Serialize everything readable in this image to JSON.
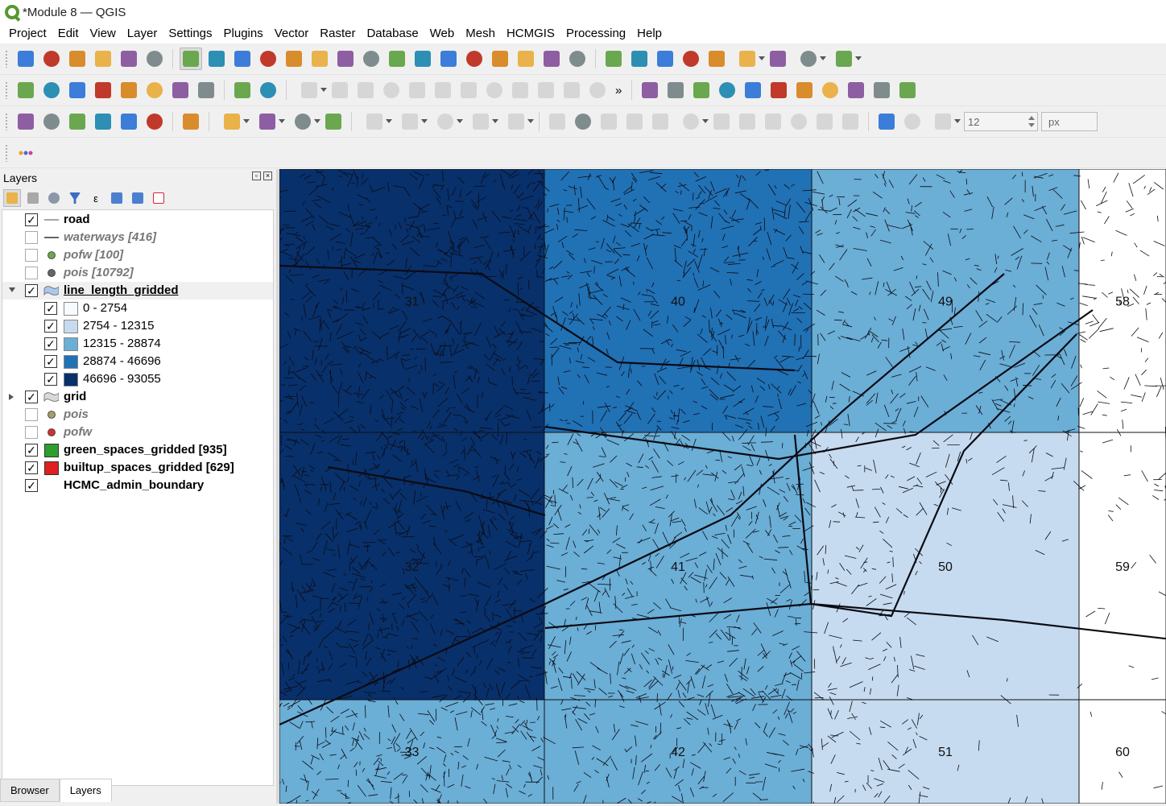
{
  "window": {
    "title": "*Module 8 — QGIS"
  },
  "menu": [
    "Project",
    "Edit",
    "View",
    "Layer",
    "Settings",
    "Plugins",
    "Vector",
    "Raster",
    "Database",
    "Web",
    "Mesh",
    "HCMGIS",
    "Processing",
    "Help"
  ],
  "toolbar3": {
    "size_value": "12",
    "unit_value": "px",
    "overflow_glyph": "»"
  },
  "panel": {
    "title": "Layers",
    "bottom_tabs": [
      "Browser",
      "Layers"
    ]
  },
  "layers": [
    {
      "name": "road",
      "checked": true,
      "style": "bold",
      "symbol": "line"
    },
    {
      "name": "waterways [416]",
      "checked": false,
      "style": "off",
      "symbol": "line"
    },
    {
      "name": "pofw [100]",
      "checked": false,
      "style": "off",
      "symbol": "point-green"
    },
    {
      "name": "pois [10792]",
      "checked": false,
      "style": "off",
      "symbol": "point-gray"
    },
    {
      "name": "line_length_gridded",
      "checked": true,
      "style": "bold-ul",
      "symbol": "polygon-blue",
      "expanded": true
    },
    {
      "name": "0 - 2754",
      "checked": true,
      "style": "class",
      "color": "#f7fbff"
    },
    {
      "name": "2754 - 12315",
      "checked": true,
      "style": "class",
      "color": "#c6dbef"
    },
    {
      "name": "12315 - 28874",
      "checked": true,
      "style": "class",
      "color": "#6baed6"
    },
    {
      "name": "28874 - 46696",
      "checked": true,
      "style": "class",
      "color": "#2171b5"
    },
    {
      "name": "46696 - 93055",
      "checked": true,
      "style": "class",
      "color": "#08306b"
    },
    {
      "name": "grid",
      "checked": true,
      "style": "bold",
      "symbol": "polygon-gray",
      "collapsed": true
    },
    {
      "name": "pois",
      "checked": false,
      "style": "off",
      "symbol": "point-olive"
    },
    {
      "name": "pofw",
      "checked": false,
      "style": "off",
      "symbol": "point-red"
    },
    {
      "name": "green_spaces_gridded [935]",
      "checked": true,
      "style": "bold",
      "symbol": "fill-green"
    },
    {
      "name": "builtup_spaces_gridded [629]",
      "checked": true,
      "style": "bold",
      "symbol": "fill-red"
    },
    {
      "name": "HCMC_admin_boundary",
      "checked": true,
      "style": "bold",
      "symbol": "none"
    }
  ],
  "map": {
    "cells": [
      {
        "label": "31",
        "color": "#08306b"
      },
      {
        "label": "40",
        "color": "#2171b5"
      },
      {
        "label": "49",
        "color": "#6baed6"
      },
      {
        "label": "58",
        "color": "#ffffff"
      },
      {
        "label": "32",
        "color": "#08306b"
      },
      {
        "label": "41",
        "color": "#6baed6"
      },
      {
        "label": "50",
        "color": "#c6dbef"
      },
      {
        "label": "59",
        "color": "#ffffff"
      },
      {
        "label": "33",
        "color": "#6baed6"
      },
      {
        "label": "42",
        "color": "#6baed6"
      },
      {
        "label": "51",
        "color": "#c6dbef"
      },
      {
        "label": "60",
        "color": "#ffffff"
      }
    ]
  },
  "icons": {
    "toolbar1": [
      "new-project-icon",
      "open-project-icon",
      "save-project-icon",
      "new-print-layout-icon",
      "layout-manager-icon",
      "style-manager-icon",
      "pan-icon",
      "pan-to-selection-icon",
      "zoom-in-icon",
      "zoom-out-icon",
      "zoom-full-icon",
      "zoom-to-selection-icon",
      "zoom-to-layer-icon",
      "zoom-native-icon",
      "zoom-last-icon",
      "zoom-next-icon",
      "new-map-view-icon",
      "new-3d-view-icon",
      "new-bookmark-icon",
      "show-bookmarks-icon",
      "temporal-controller-icon",
      "refresh-icon",
      "identify-icon",
      "attribute-table-icon",
      "field-calculator-icon",
      "processing-toolbox-icon",
      "statistics-icon",
      "measure-icon",
      "map-tips-icon",
      "locator-icon",
      "annotation-icon"
    ],
    "toolbar2": [
      "label-toolbar-icon",
      "label-diagram-icon",
      "label-pin-icon",
      "label-hide-icon",
      "label-show-icon",
      "label-move-icon",
      "label-rotate-icon",
      "label-change-icon",
      "georeferencer-icon",
      "topology-icon",
      "digitize-1-icon",
      "digitize-2-icon",
      "digitize-3-icon",
      "digitize-4-icon",
      "digitize-5-icon",
      "digitize-6-icon",
      "digitize-7-icon",
      "digitize-8-icon",
      "digitize-9-icon",
      "digitize-10-icon",
      "digitize-11-icon",
      "digitize-12-icon",
      "python-console-icon",
      "georef-raster-icon",
      "magic-wand-icon",
      "undo-plugin-icon",
      "globe-icon",
      "identify-plus-icon",
      "profile-tool-icon",
      "plugin-a-icon",
      "plugin-b-icon",
      "search-plugin-icon",
      "qgis-tools-icon"
    ],
    "toolbar3": [
      "add-vector-layer-icon",
      "add-raster-layer-icon",
      "add-delimited-icon",
      "add-virtual-layer-icon",
      "add-wms-icon",
      "add-mesh-icon",
      "help-icon",
      "select-features-icon",
      "select-by-attribute-icon",
      "deselect-icon",
      "select-by-location-icon",
      "edit-a-icon",
      "edit-b-icon",
      "edit-c-icon",
      "edit-d-icon",
      "edit-e-icon",
      "toggle-edit-icon",
      "pencil-icon",
      "save-edits-icon",
      "add-feature-icon",
      "vertex-tool-icon",
      "edit-attributes-icon",
      "delete-selected-icon",
      "cut-features-icon",
      "copy-features-icon",
      "paste-features-icon",
      "undo-icon",
      "redo-icon",
      "snapping-icon",
      "snap-vertex-icon",
      "snap-type-icon"
    ]
  }
}
